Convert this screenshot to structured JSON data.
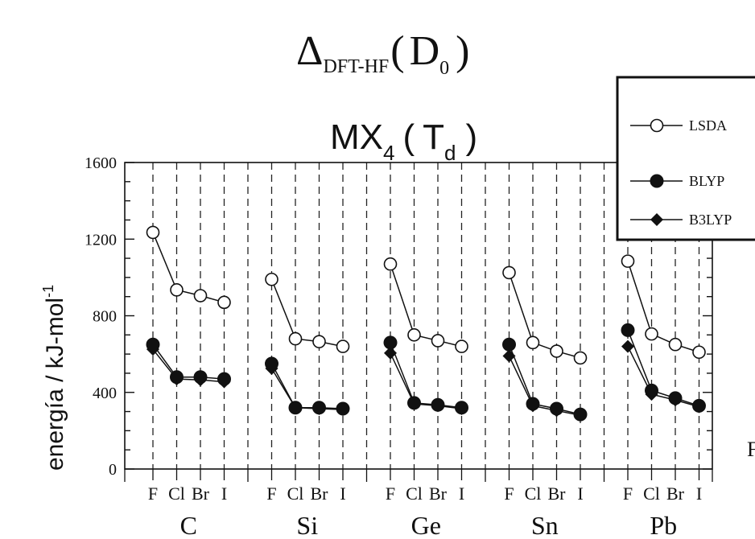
{
  "title": {
    "delta": "Δ",
    "delta_sub": "DFT-HF",
    "paren_open": "(",
    "d": "D",
    "d_sub": "0",
    "paren_close": ")"
  },
  "subtitle": {
    "mx": "MX",
    "mx_sub": "4",
    "paren_open": "(",
    "t": "T",
    "t_sub": "d",
    "paren_close": ")"
  },
  "ylabel": "energía / kJ-mol",
  "ylabel_sup": "-1",
  "edge_label": "F",
  "chart_data": {
    "type": "line",
    "ylim": [
      0,
      1600
    ],
    "yticks": [
      0,
      400,
      800,
      1200,
      1600
    ],
    "halogens": [
      "F",
      "Cl",
      "Br",
      "I"
    ],
    "groups": [
      "C",
      "Si",
      "Ge",
      "Sn",
      "Pb"
    ],
    "legend_position": "top-right",
    "grid": "vertical-dashed",
    "series": [
      {
        "name": "LSDA",
        "marker": "circle-open",
        "values": [
          [
            1235,
            935,
            905,
            870
          ],
          [
            990,
            680,
            665,
            640
          ],
          [
            1070,
            700,
            670,
            640
          ],
          [
            1025,
            660,
            615,
            580
          ],
          [
            1085,
            705,
            650,
            610
          ]
        ]
      },
      {
        "name": "BLYP",
        "marker": "circle-filled",
        "values": [
          [
            650,
            480,
            480,
            470
          ],
          [
            550,
            320,
            320,
            315
          ],
          [
            660,
            345,
            335,
            320
          ],
          [
            650,
            340,
            315,
            285
          ],
          [
            725,
            410,
            370,
            330
          ]
        ]
      },
      {
        "name": "B3LYP",
        "marker": "diamond-filled",
        "values": [
          [
            625,
            470,
            465,
            455
          ],
          [
            525,
            320,
            315,
            310
          ],
          [
            605,
            340,
            330,
            315
          ],
          [
            590,
            330,
            305,
            280
          ],
          [
            640,
            390,
            360,
            325
          ]
        ]
      }
    ]
  }
}
